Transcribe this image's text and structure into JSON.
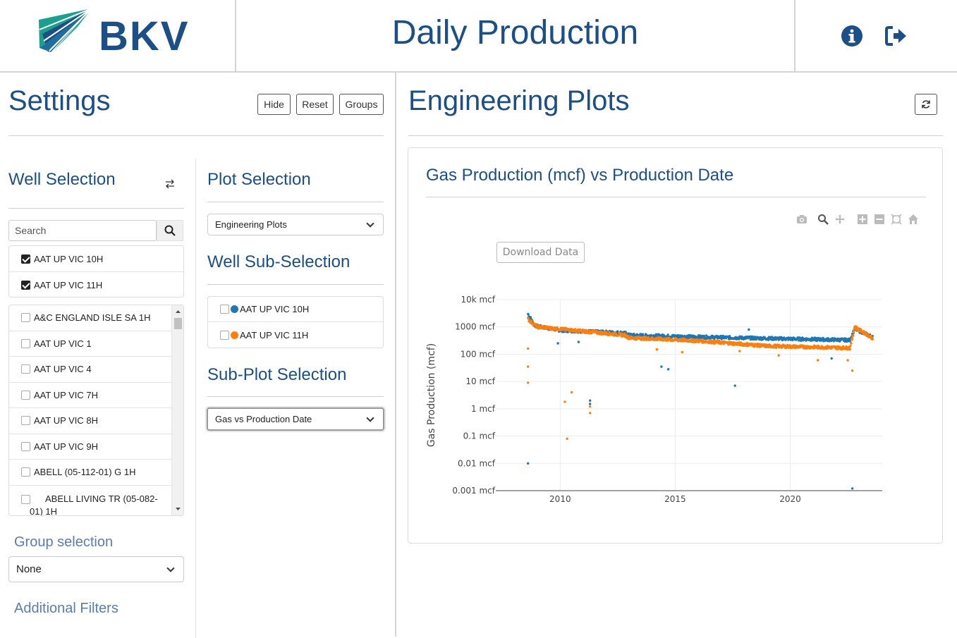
{
  "header": {
    "logo_text": "BKV",
    "title": "Daily Production",
    "info_icon": "info-circle-icon",
    "logout_icon": "sign-out-icon"
  },
  "settings": {
    "title": "Settings",
    "buttons": {
      "hide": "Hide",
      "reset": "Reset",
      "groups": "Groups"
    },
    "well_selection": {
      "title": "Well Selection",
      "swap_icon": "swap-arrows-icon",
      "search_placeholder": "Search",
      "checked": [
        {
          "label": "AAT UP VIC 10H",
          "checked": true
        },
        {
          "label": "AAT UP VIC 11H",
          "checked": true
        }
      ],
      "wells": [
        {
          "label": "A&C ENGLAND ISLE SA 1H"
        },
        {
          "label": "AAT UP VIC 1"
        },
        {
          "label": "AAT UP VIC 4"
        },
        {
          "label": "AAT UP VIC 7H"
        },
        {
          "label": "AAT UP VIC 8H"
        },
        {
          "label": "AAT UP VIC 9H"
        },
        {
          "label": "ABELL (05-112-01) G 1H"
        },
        {
          "label": "ABELL LIVING TR (05-082-01) 1H"
        }
      ]
    },
    "group_selection": {
      "title": "Group selection",
      "value": "None"
    },
    "additional_filters": "Additional Filters",
    "plot_selection": {
      "title": "Plot Selection",
      "value": "Engineering Plots"
    },
    "well_sub_selection": {
      "title": "Well Sub-Selection",
      "items": [
        {
          "label": "AAT UP VIC 10H",
          "color": "#1f77b4"
        },
        {
          "label": "AAT UP VIC 11H",
          "color": "#ff7f0e"
        }
      ]
    },
    "sub_plot_selection": {
      "title": "Sub-Plot Selection",
      "value": "Gas vs Production Date"
    }
  },
  "plots": {
    "title": "Engineering Plots",
    "refresh_icon": "refresh-icon",
    "card_title": "Gas Production (mcf) vs Production Date",
    "download_label": "Download Data",
    "modebar": [
      "camera-icon",
      "zoom-icon",
      "pan-icon",
      "zoom-in-icon",
      "zoom-out-icon",
      "autoscale-icon",
      "reset-axes-icon"
    ]
  },
  "chart_data": {
    "type": "scatter",
    "title": "Gas Production (mcf) vs Production Date",
    "xlabel": "Production Date",
    "ylabel": "Gas Production (mcf)",
    "x_ticks": [
      "2010",
      "2015",
      "2020"
    ],
    "y_ticks": [
      "10k mcf",
      "1000 mcf",
      "100 mcf",
      "10 mcf",
      "1 mcf",
      "0.1 mcf",
      "0.01 mcf",
      "0.001 mcf"
    ],
    "y_scale": "log",
    "xlim": [
      2007.2,
      2024.0
    ],
    "ylim": [
      0.001,
      10000
    ],
    "series": [
      {
        "name": "AAT UP VIC 10H",
        "color": "#1f77b4",
        "trend": [
          [
            2008.6,
            3000
          ],
          [
            2008.9,
            1100
          ],
          [
            2010.0,
            750
          ],
          [
            2012.8,
            600
          ],
          [
            2013.0,
            500
          ],
          [
            2016.0,
            430
          ],
          [
            2019.0,
            380
          ],
          [
            2022.6,
            330
          ],
          [
            2022.8,
            850
          ],
          [
            2023.6,
            420
          ]
        ],
        "outliers": [
          [
            2008.6,
            0.01
          ],
          [
            2011.3,
            2
          ],
          [
            2011.3,
            1.5
          ],
          [
            2014.4,
            35
          ],
          [
            2014.7,
            28
          ],
          [
            2017.6,
            7
          ],
          [
            2018.2,
            800
          ],
          [
            2022.7,
            0.0012
          ],
          [
            2021.8,
            70
          ],
          [
            2009.9,
            250
          ],
          [
            2010.8,
            280
          ]
        ]
      },
      {
        "name": "AAT UP VIC 11H",
        "color": "#ff7f0e",
        "trend": [
          [
            2008.6,
            1900
          ],
          [
            2009.0,
            1000
          ],
          [
            2012.8,
            500
          ],
          [
            2013.0,
            400
          ],
          [
            2016.0,
            310
          ],
          [
            2019.0,
            200
          ],
          [
            2022.6,
            170
          ],
          [
            2022.8,
            1000
          ],
          [
            2023.6,
            380
          ]
        ],
        "outliers": [
          [
            2008.6,
            160
          ],
          [
            2008.6,
            35
          ],
          [
            2008.6,
            9
          ],
          [
            2010.2,
            1.8
          ],
          [
            2010.5,
            4
          ],
          [
            2010.3,
            0.08
          ],
          [
            2011.3,
            0.7
          ],
          [
            2011.3,
            1.2
          ],
          [
            2022.7,
            25
          ],
          [
            2022.5,
            60
          ],
          [
            2019.5,
            90
          ],
          [
            2021.2,
            60
          ],
          [
            2014.2,
            150
          ],
          [
            2015.3,
            120
          ],
          [
            2017.8,
            130
          ]
        ]
      }
    ]
  }
}
